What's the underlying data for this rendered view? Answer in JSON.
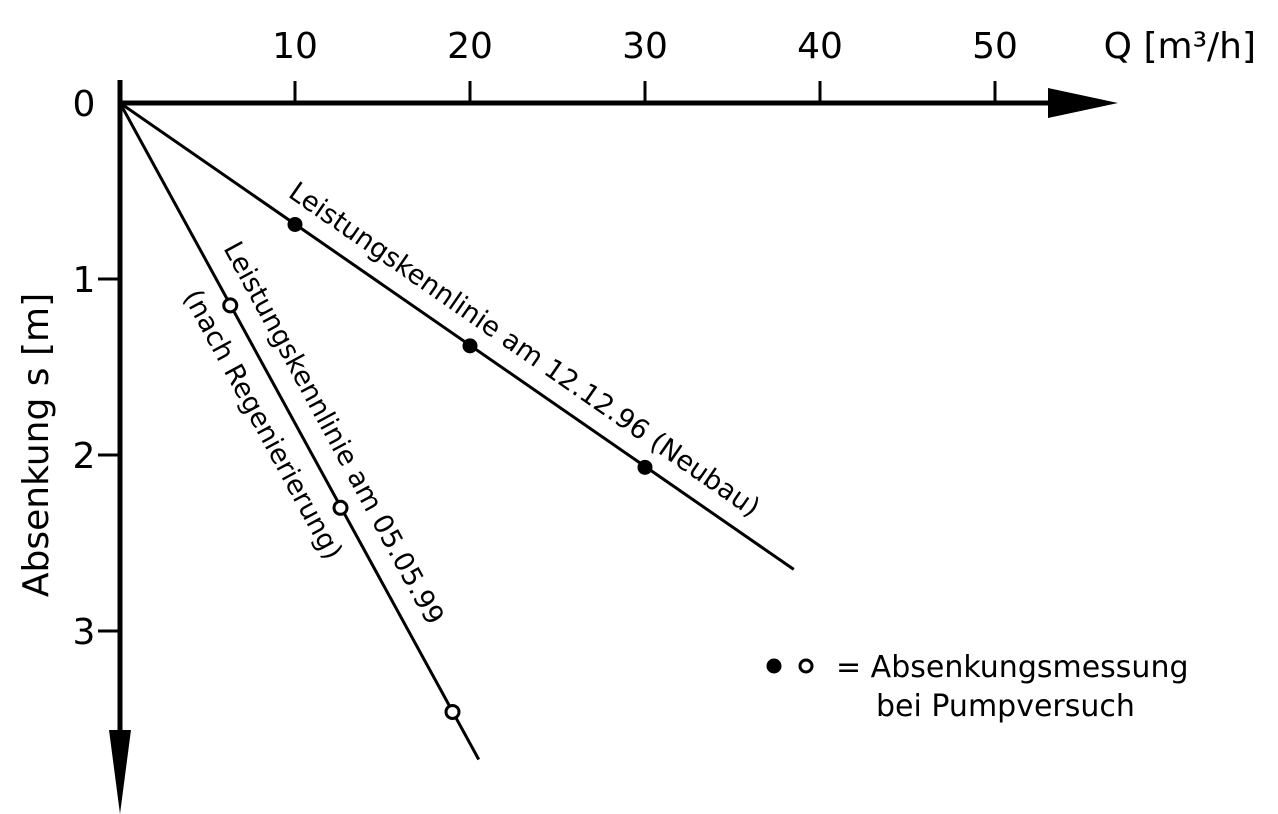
{
  "chart_data": {
    "type": "line",
    "x_axis": {
      "title": "Q [m³/h]",
      "ticks": [
        10,
        20,
        30,
        40,
        50
      ],
      "range": [
        0,
        56
      ],
      "position": "top"
    },
    "y_axis": {
      "title": "Absenkung s [m]",
      "ticks": [
        0,
        1,
        2,
        3
      ],
      "range": [
        0,
        3.7
      ],
      "direction": "downward"
    },
    "grid": false,
    "series": [
      {
        "name": "Leistungskennlinie am 12.12.96 (Neubau)",
        "marker": "filled",
        "points": [
          {
            "x": 10,
            "y": 0.69
          },
          {
            "x": 20,
            "y": 1.38
          },
          {
            "x": 30,
            "y": 2.07
          }
        ],
        "line_end": {
          "x": 38.5,
          "y": 2.65
        }
      },
      {
        "name": "Leistungskennlinie am 05.05.99 (nach Regenierierung)",
        "marker": "open",
        "points": [
          {
            "x": 6.3,
            "y": 1.15
          },
          {
            "x": 12.6,
            "y": 2.3
          },
          {
            "x": 19,
            "y": 3.46
          }
        ],
        "line_end": {
          "x": 20.5,
          "y": 3.73
        }
      }
    ],
    "series_labels": {
      "s1": "Leistungskennlinie am 12.12.96 (Neubau)",
      "s2_line1": "Leistungskennlinie am 05.05.99",
      "s2_line2": "(nach Regenierierung)"
    },
    "legend": {
      "line1": "= Absenkungsmessung",
      "line2": "bei Pumpversuch",
      "placement": "bottom-right"
    }
  }
}
